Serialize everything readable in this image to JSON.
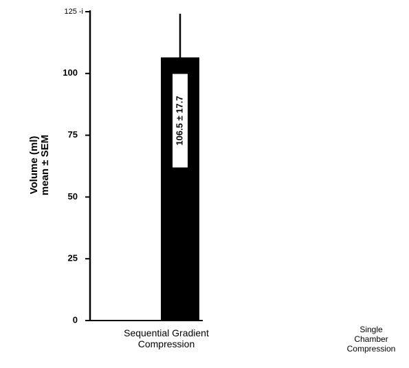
{
  "chart_data": {
    "type": "bar",
    "ylabel": [
      "Volume (ml)",
      "mean ± SEM"
    ],
    "categories": [
      "Sequential Gradient Compression",
      "Single Chamber Compression"
    ],
    "values": [
      106.5,
      null
    ],
    "errors": [
      17.7,
      null
    ],
    "value_labels": [
      "106.5 ± 17.7",
      null
    ],
    "color": "#000000",
    "ylim": [
      0,
      125
    ],
    "yticks": [
      0,
      25,
      50,
      75,
      100,
      {
        "value": 125,
        "label": "125 -i"
      }
    ]
  }
}
